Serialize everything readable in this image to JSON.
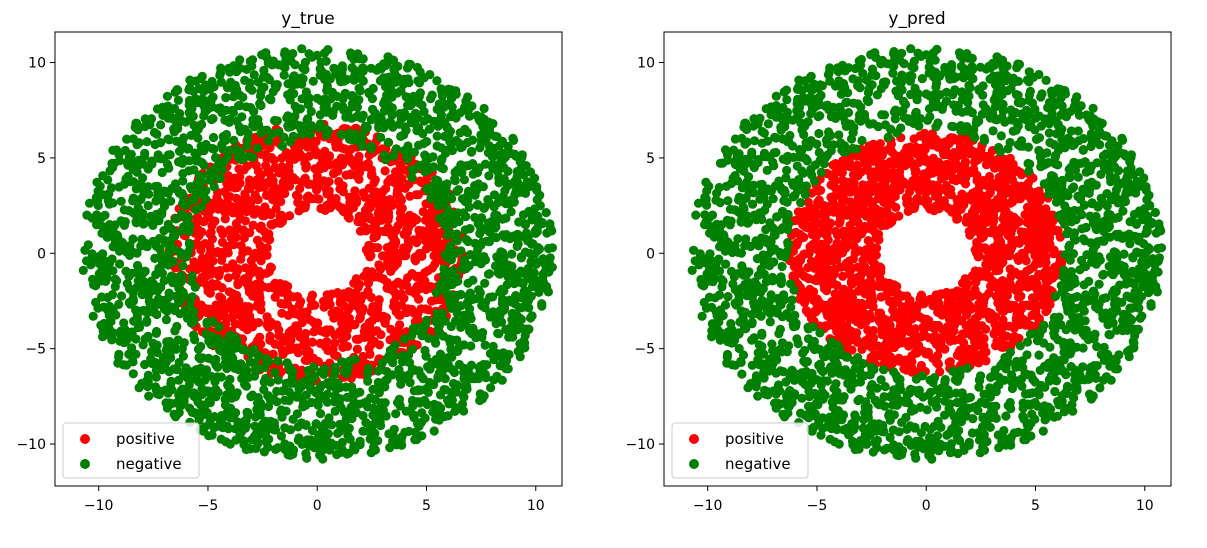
{
  "chart_data": [
    {
      "type": "scatter",
      "title": "y_true",
      "xlabel": "",
      "ylabel": "",
      "xlim": [
        -12,
        11.2
      ],
      "ylim": [
        -12.2,
        11.6
      ],
      "xticks": [
        -10,
        -5,
        0,
        5,
        10
      ],
      "yticks": [
        10,
        5,
        0,
        -5,
        -10
      ],
      "xtick_labels": [
        "−10",
        "−5",
        "0",
        "5",
        "10"
      ],
      "ytick_labels": [
        "10",
        "5",
        "0",
        "−5",
        "−10"
      ],
      "grid": false,
      "legend": {
        "placement": "lower-left",
        "entries": [
          "positive",
          "negative"
        ]
      },
      "series": [
        {
          "name": "positive",
          "color": "#ff0000",
          "distribution": "annulus",
          "r_min": 2.2,
          "r_max": 6.8,
          "n": 1400
        },
        {
          "name": "negative",
          "color": "#008000",
          "distribution": "annulus",
          "r_min": 5.8,
          "r_max": 10.8,
          "n": 2300
        }
      ]
    },
    {
      "type": "scatter",
      "title": "y_pred",
      "xlabel": "",
      "ylabel": "",
      "xlim": [
        -12,
        11.2
      ],
      "ylim": [
        -12.2,
        11.6
      ],
      "xticks": [
        -10,
        -5,
        0,
        5,
        10
      ],
      "yticks": [
        10,
        5,
        0,
        -5,
        -10
      ],
      "xtick_labels": [
        "−10",
        "−5",
        "0",
        "5",
        "10"
      ],
      "ytick_labels": [
        "10",
        "5",
        "0",
        "−5",
        "−10"
      ],
      "grid": false,
      "legend": {
        "placement": "lower-left",
        "entries": [
          "positive",
          "negative"
        ]
      },
      "series": [
        {
          "name": "positive",
          "color": "#ff0000",
          "distribution": "annulus",
          "r_min": 2.2,
          "r_max": 6.3,
          "n": 1700
        },
        {
          "name": "negative",
          "color": "#008000",
          "distribution": "annulus",
          "r_min": 6.3,
          "r_max": 10.8,
          "n": 2100
        }
      ]
    }
  ]
}
